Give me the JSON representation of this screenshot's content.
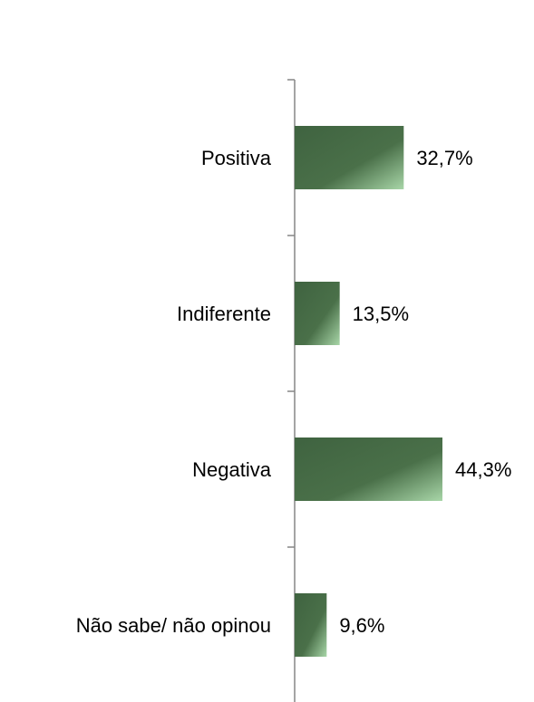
{
  "chart_data": {
    "type": "bar",
    "orientation": "horizontal",
    "categories": [
      "Positiva",
      "Indiferente",
      "Negativa",
      "Não sabe/ não opinou"
    ],
    "values": [
      32.7,
      13.5,
      44.3,
      9.6
    ],
    "value_labels": [
      "32,7%",
      "13,5%",
      "44,3%",
      "9,6%"
    ],
    "title": "",
    "xlabel": "",
    "ylabel": "",
    "xlim": [
      0,
      44.3
    ],
    "grid": false,
    "legend": "none",
    "bar_color_dark": "#3f6340",
    "bar_color_mid": "#4a7049",
    "bar_color_light": "#a8d6a8",
    "axis_color": "#868686"
  }
}
